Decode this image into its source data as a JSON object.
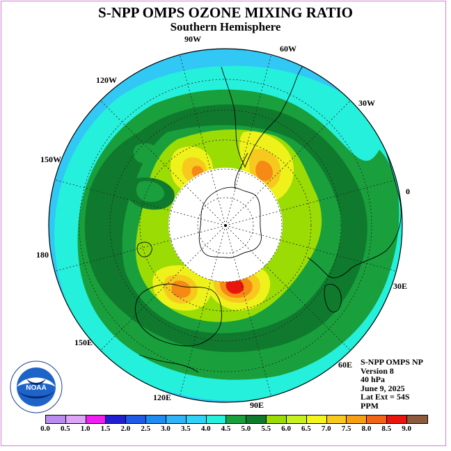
{
  "header": {
    "title": "S-NPP OMPS OZONE MIXING RATIO",
    "subtitle": "Southern Hemisphere"
  },
  "map": {
    "projection": "polar-stereographic-south",
    "longitude_labels": [
      {
        "text": "90W"
      },
      {
        "text": "60W"
      },
      {
        "text": "30W"
      },
      {
        "text": "0"
      },
      {
        "text": "30E"
      },
      {
        "text": "60E"
      },
      {
        "text": "90E"
      },
      {
        "text": "120E"
      },
      {
        "text": "150E"
      },
      {
        "text": "180"
      },
      {
        "text": "150W"
      },
      {
        "text": "120W"
      }
    ],
    "colors": {
      "outer_ring": "#31c8f5",
      "band_cyan": "#25f0dc",
      "band_green": "#19a03c",
      "band_dark_green": "#0f7a2d",
      "band_light_green": "#2fc33c",
      "band_yellow_green": "#9bdc05",
      "band_yellow": "#eff21a",
      "band_gold": "#f7c81e",
      "band_orange": "#f58b14",
      "band_red": "#e8160c",
      "polar_night": "#ffffff"
    }
  },
  "info_box": {
    "lines": [
      "S-NPP OMPS NP",
      "Version 8",
      "40 hPa",
      "June 9, 2025",
      "Lat Ext = 54S",
      "PPM"
    ]
  },
  "logo": {
    "text": "NOAA",
    "ring_text": "NATIONAL OCEANIC AND ATMOSPHERIC ADMINISTRATION · U.S. DEPARTMENT OF COMMERCE"
  },
  "colorbar": {
    "unit": "PPM",
    "ticks": [
      "0.0",
      "0.5",
      "1.0",
      "1.5",
      "2.0",
      "2.5",
      "3.0",
      "3.5",
      "4.0",
      "4.5",
      "5.0",
      "5.5",
      "6.0",
      "6.5",
      "7.0",
      "7.5",
      "8.0",
      "8.5",
      "9.0"
    ],
    "colors": [
      "#b98cf0",
      "#dca5f5",
      "#f01ef0",
      "#2020d2",
      "#1e5ae6",
      "#1e8cf0",
      "#31b4f5",
      "#31d2f5",
      "#25f0dc",
      "#19a03c",
      "#0f7a2d",
      "#9bdc05",
      "#c8f01e",
      "#f5f51e",
      "#f7c81e",
      "#f5a014",
      "#f06414",
      "#e8160c",
      "#8c5a3c"
    ]
  }
}
